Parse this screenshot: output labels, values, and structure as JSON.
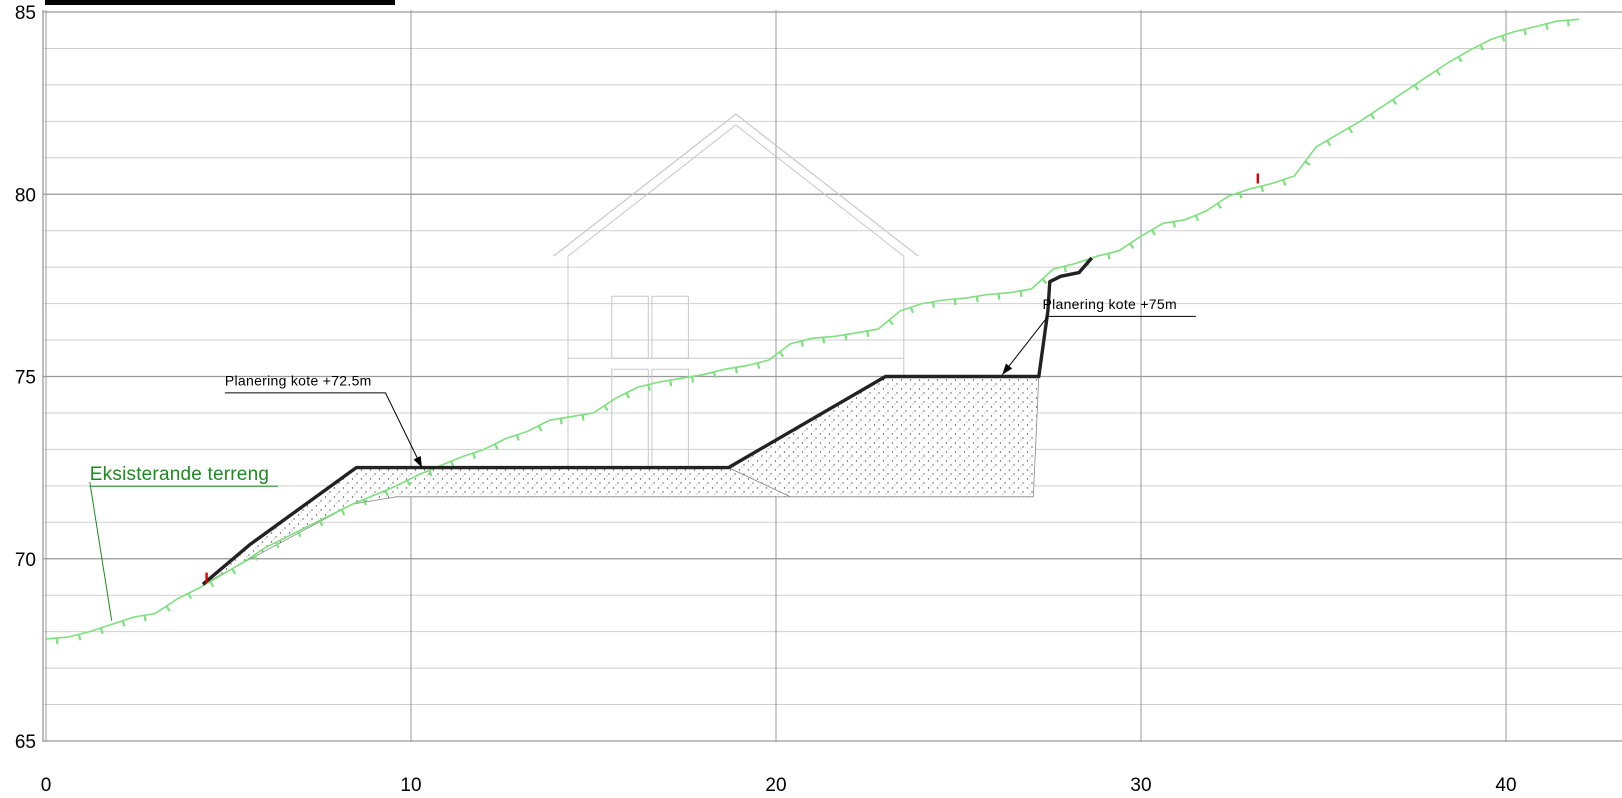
{
  "section": {
    "xlim": [
      0,
      42
    ],
    "ylim": [
      65,
      85
    ],
    "x_ticks": [
      0,
      10,
      20,
      30,
      40
    ],
    "x_tick_labels": [
      "0",
      "10",
      "20",
      "30",
      "40"
    ],
    "y_ticks": [
      65,
      70,
      75,
      80,
      85
    ],
    "y_tick_labels": [
      "65",
      "70",
      "75",
      "80",
      "85"
    ],
    "minor_grid_step": 1,
    "colors": {
      "terrain": "#7ee07e",
      "terrain_label": "#1e8a1e",
      "new_profile": "#222222",
      "grid_major": "#9a9a9a",
      "grid_minor": "#cfcfcf",
      "marker": "#dd0000",
      "house": "#c8c8c8"
    }
  },
  "labels": {
    "terrain": "Eksisterande terreng",
    "plan_low": "Planering kote +72.5m",
    "plan_high": "Planering kote +75m"
  },
  "existing_terrain": [
    [
      0,
      67.8
    ],
    [
      0.6,
      67.85
    ],
    [
      1.2,
      68.0
    ],
    [
      1.8,
      68.2
    ],
    [
      2.4,
      68.4
    ],
    [
      3.0,
      68.5
    ],
    [
      3.6,
      68.9
    ],
    [
      4.2,
      69.2
    ],
    [
      4.8,
      69.55
    ],
    [
      5.4,
      69.9
    ],
    [
      6.0,
      70.3
    ],
    [
      6.6,
      70.6
    ],
    [
      7.2,
      70.9
    ],
    [
      7.8,
      71.2
    ],
    [
      8.4,
      71.5
    ],
    [
      9.0,
      71.75
    ],
    [
      9.6,
      72.0
    ],
    [
      10.2,
      72.3
    ],
    [
      10.8,
      72.55
    ],
    [
      11.4,
      72.8
    ],
    [
      12.0,
      73.0
    ],
    [
      12.6,
      73.3
    ],
    [
      13.2,
      73.5
    ],
    [
      13.8,
      73.8
    ],
    [
      14.4,
      73.9
    ],
    [
      15.0,
      74.0
    ],
    [
      15.6,
      74.4
    ],
    [
      16.2,
      74.7
    ],
    [
      16.8,
      74.85
    ],
    [
      17.4,
      74.95
    ],
    [
      18.0,
      75.05
    ],
    [
      18.6,
      75.2
    ],
    [
      19.2,
      75.3
    ],
    [
      19.8,
      75.45
    ],
    [
      20.4,
      75.9
    ],
    [
      21.0,
      76.05
    ],
    [
      21.6,
      76.1
    ],
    [
      22.2,
      76.2
    ],
    [
      22.8,
      76.3
    ],
    [
      23.4,
      76.8
    ],
    [
      24.0,
      77.0
    ],
    [
      24.6,
      77.1
    ],
    [
      25.2,
      77.15
    ],
    [
      25.8,
      77.25
    ],
    [
      26.4,
      77.3
    ],
    [
      27.0,
      77.4
    ],
    [
      27.6,
      77.95
    ],
    [
      28.2,
      78.1
    ],
    [
      28.8,
      78.3
    ],
    [
      29.4,
      78.45
    ],
    [
      30.0,
      78.85
    ],
    [
      30.6,
      79.2
    ],
    [
      31.2,
      79.3
    ],
    [
      31.8,
      79.55
    ],
    [
      32.4,
      79.95
    ],
    [
      33.0,
      80.15
    ],
    [
      33.6,
      80.3
    ],
    [
      34.2,
      80.5
    ],
    [
      34.8,
      81.3
    ],
    [
      35.4,
      81.65
    ],
    [
      36.0,
      82.0
    ],
    [
      36.6,
      82.4
    ],
    [
      37.2,
      82.8
    ],
    [
      37.8,
      83.2
    ],
    [
      38.4,
      83.6
    ],
    [
      39.0,
      83.95
    ],
    [
      39.6,
      84.25
    ],
    [
      40.2,
      84.45
    ],
    [
      40.8,
      84.6
    ],
    [
      41.4,
      84.75
    ],
    [
      42.0,
      84.8
    ]
  ],
  "new_profile": [
    [
      4.3,
      69.3
    ],
    [
      5.6,
      70.4
    ],
    [
      8.5,
      72.5
    ],
    [
      18.7,
      72.5
    ],
    [
      23.0,
      75.0
    ],
    [
      27.2,
      75.0
    ],
    [
      27.45,
      76.8
    ],
    [
      27.5,
      77.6
    ],
    [
      27.8,
      77.75
    ],
    [
      28.3,
      77.85
    ],
    [
      28.65,
      78.25
    ]
  ],
  "fill_low": [
    [
      8.5,
      72.5
    ],
    [
      18.7,
      72.5
    ],
    [
      20.4,
      71.7
    ],
    [
      9.6,
      71.7
    ],
    [
      8.4,
      71.5
    ],
    [
      4.3,
      69.3
    ],
    [
      5.6,
      70.4
    ]
  ],
  "fill_high": [
    [
      18.7,
      72.5
    ],
    [
      23.0,
      75.0
    ],
    [
      27.2,
      75.0
    ],
    [
      27.05,
      71.7
    ],
    [
      20.4,
      71.7
    ]
  ],
  "markers": [
    [
      4.4,
      69.4
    ],
    [
      33.2,
      80.35
    ]
  ],
  "anno_low": {
    "text_at": [
      4.9,
      74.75
    ],
    "line": [
      [
        4.9,
        74.55
      ],
      [
        9.3,
        74.55
      ],
      [
        10.3,
        72.5
      ]
    ]
  },
  "anno_high": {
    "text_at": [
      27.3,
      76.85
    ],
    "line": [
      [
        31.5,
        76.65
      ],
      [
        27.45,
        76.65
      ],
      [
        26.2,
        75.05
      ]
    ]
  },
  "anno_terrain": {
    "text_at": [
      1.2,
      72.1
    ],
    "line": [
      [
        1.2,
        72.1
      ],
      [
        1.8,
        68.3
      ]
    ]
  },
  "house": {
    "roof": [
      [
        13.9,
        78.3
      ],
      [
        18.9,
        82.2
      ],
      [
        23.9,
        78.3
      ]
    ],
    "roof_inner": [
      [
        14.3,
        78.3
      ],
      [
        18.9,
        81.9
      ],
      [
        23.5,
        78.3
      ]
    ],
    "walls": [
      [
        14.3,
        78.3
      ],
      [
        14.3,
        72.5
      ],
      [
        23.5,
        72.5
      ],
      [
        23.5,
        78.3
      ]
    ],
    "floor_line": [
      [
        14.3,
        75.5
      ],
      [
        23.5,
        75.5
      ]
    ],
    "windows": [
      [
        [
          15.5,
          77.2
        ],
        [
          16.5,
          77.2
        ],
        [
          16.5,
          75.5
        ],
        [
          15.5,
          75.5
        ]
      ],
      [
        [
          16.6,
          77.2
        ],
        [
          17.6,
          77.2
        ],
        [
          17.6,
          75.5
        ],
        [
          16.6,
          75.5
        ]
      ],
      [
        [
          15.5,
          75.2
        ],
        [
          16.5,
          75.2
        ],
        [
          16.5,
          72.5
        ],
        [
          15.5,
          72.5
        ]
      ],
      [
        [
          16.6,
          75.2
        ],
        [
          17.6,
          75.2
        ],
        [
          17.6,
          72.5
        ],
        [
          16.6,
          72.5
        ]
      ]
    ]
  }
}
